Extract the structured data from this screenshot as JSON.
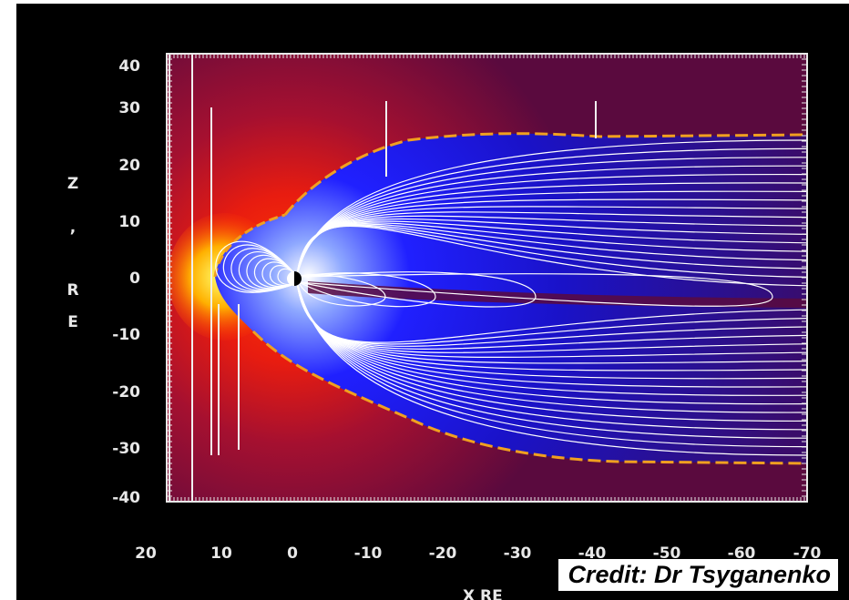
{
  "figure": {
    "y_ticks": [
      "40",
      "30",
      "20",
      "10",
      "0",
      "-10",
      "-20",
      "-30",
      "-40"
    ],
    "x_ticks": [
      "20",
      "10",
      "0",
      "-10",
      "-20",
      "-30",
      "-40",
      "-50",
      "-60",
      "-70"
    ],
    "y_axis_letters": [
      "Z",
      ",",
      "R",
      "E"
    ],
    "x_axis_title": "X  RE",
    "credit": "Credit: Dr Tsyganenko"
  },
  "colors": {
    "background": "#000000",
    "field_outer": "#5a0a3e",
    "field_core": "#1010e0",
    "dayside_hot": "#ff2a00",
    "boundary": "#f0a020",
    "field_lines": "#ffffff"
  }
}
